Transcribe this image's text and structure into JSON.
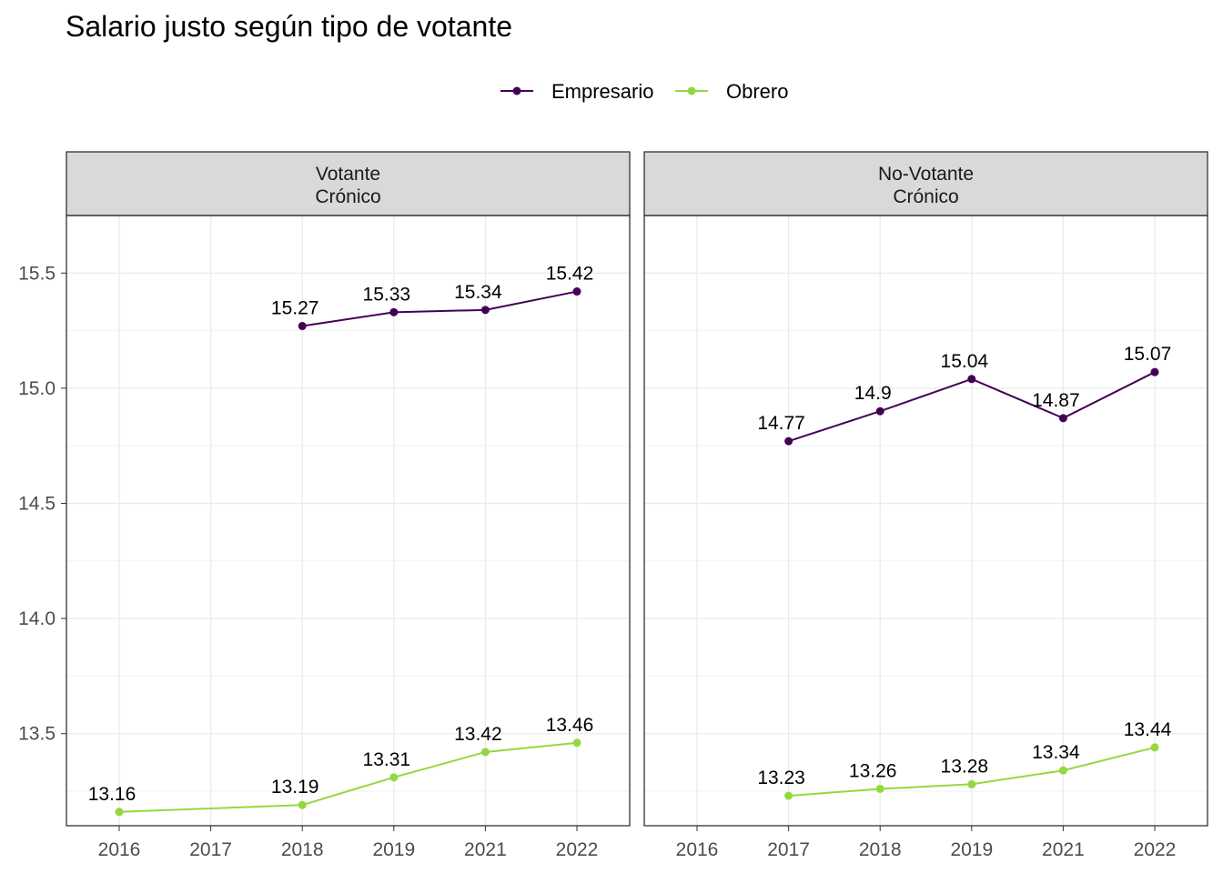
{
  "chart_data": {
    "type": "line",
    "title": "Salario justo según tipo de votante",
    "xlabel": "",
    "ylabel": "",
    "ylim": [
      13.1,
      15.75
    ],
    "y_ticks": [
      "13.5",
      "14.0",
      "14.5",
      "15.0",
      "15.5"
    ],
    "x": [
      "2016",
      "2017",
      "2018",
      "2019",
      "2021",
      "2022"
    ],
    "grid": true,
    "legend": {
      "position": "top",
      "entries": [
        {
          "name": "Empresario",
          "color": "#440154"
        },
        {
          "name": "Obrero",
          "color": "#94D840"
        }
      ]
    },
    "panels": [
      {
        "strip": [
          "Votante",
          "Crónico"
        ],
        "series": [
          {
            "name": "Empresario",
            "color": "#440154",
            "points": [
              {
                "x": "2018",
                "y": 15.27,
                "label": "15.27"
              },
              {
                "x": "2019",
                "y": 15.33,
                "label": "15.33"
              },
              {
                "x": "2021",
                "y": 15.34,
                "label": "15.34"
              },
              {
                "x": "2022",
                "y": 15.42,
                "label": "15.42"
              }
            ]
          },
          {
            "name": "Obrero",
            "color": "#94D840",
            "points": [
              {
                "x": "2016",
                "y": 13.16,
                "label": "13.16"
              },
              {
                "x": "2018",
                "y": 13.19,
                "label": "13.19"
              },
              {
                "x": "2019",
                "y": 13.31,
                "label": "13.31"
              },
              {
                "x": "2021",
                "y": 13.42,
                "label": "13.42"
              },
              {
                "x": "2022",
                "y": 13.46,
                "label": "13.46"
              }
            ]
          }
        ]
      },
      {
        "strip": [
          "No-Votante",
          "Crónico"
        ],
        "series": [
          {
            "name": "Empresario",
            "color": "#440154",
            "points": [
              {
                "x": "2017",
                "y": 14.77,
                "label": "14.77"
              },
              {
                "x": "2018",
                "y": 14.9,
                "label": "14.9"
              },
              {
                "x": "2019",
                "y": 15.04,
                "label": "15.04"
              },
              {
                "x": "2021",
                "y": 14.87,
                "label": "14.87"
              },
              {
                "x": "2022",
                "y": 15.07,
                "label": "15.07"
              }
            ]
          },
          {
            "name": "Obrero",
            "color": "#94D840",
            "points": [
              {
                "x": "2017",
                "y": 13.23,
                "label": "13.23"
              },
              {
                "x": "2018",
                "y": 13.26,
                "label": "13.26"
              },
              {
                "x": "2019",
                "y": 13.28,
                "label": "13.28"
              },
              {
                "x": "2021",
                "y": 13.34,
                "label": "13.34"
              },
              {
                "x": "2022",
                "y": 13.44,
                "label": "13.44"
              }
            ]
          }
        ]
      }
    ]
  }
}
